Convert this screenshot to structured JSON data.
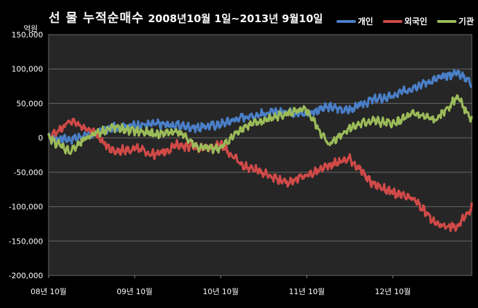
{
  "chart_data": {
    "type": "line",
    "title": "선 물 누적순매수",
    "subtitle": "2008년10월 1일~2013년 9월10일",
    "ylabel_unit": "억원",
    "ylim": [
      -200000,
      150000
    ],
    "yticks": [
      "150,000",
      "100,000",
      "50,000",
      "0",
      "-50,000",
      "-100,000",
      "-150,000",
      "-200,000"
    ],
    "ytick_values": [
      150000,
      100000,
      50000,
      0,
      -50000,
      -100000,
      -150000,
      -200000
    ],
    "xticks": [
      "08년 10월",
      "09년 10월",
      "10년 10월",
      "11년 10월",
      "12년 10월"
    ],
    "x_months": [
      0,
      3,
      6,
      9,
      12,
      15,
      18,
      21,
      24,
      27,
      30,
      33,
      36,
      39,
      42,
      45,
      48,
      51,
      54,
      57,
      59
    ],
    "grid": true,
    "legend_position": "top-right",
    "series": [
      {
        "name": "개인",
        "color": "#4a7fc8",
        "values": [
          0,
          -2000,
          5000,
          15000,
          18000,
          20000,
          18000,
          15000,
          20000,
          30000,
          35000,
          38000,
          35000,
          45000,
          40000,
          55000,
          60000,
          75000,
          85000,
          95000,
          80000
        ]
      },
      {
        "name": "외국인",
        "color": "#d04a48",
        "values": [
          0,
          25000,
          10000,
          -20000,
          -15000,
          -25000,
          -10000,
          -15000,
          -10000,
          -40000,
          -50000,
          -65000,
          -55000,
          -40000,
          -30000,
          -65000,
          -80000,
          -90000,
          -125000,
          -130000,
          -100000
        ]
      },
      {
        "name": "기관",
        "color": "#9bbb59",
        "values": [
          0,
          -20000,
          5000,
          15000,
          10000,
          5000,
          10000,
          -15000,
          -15000,
          15000,
          25000,
          35000,
          40000,
          -10000,
          15000,
          25000,
          20000,
          35000,
          25000,
          60000,
          25000
        ]
      }
    ]
  }
}
